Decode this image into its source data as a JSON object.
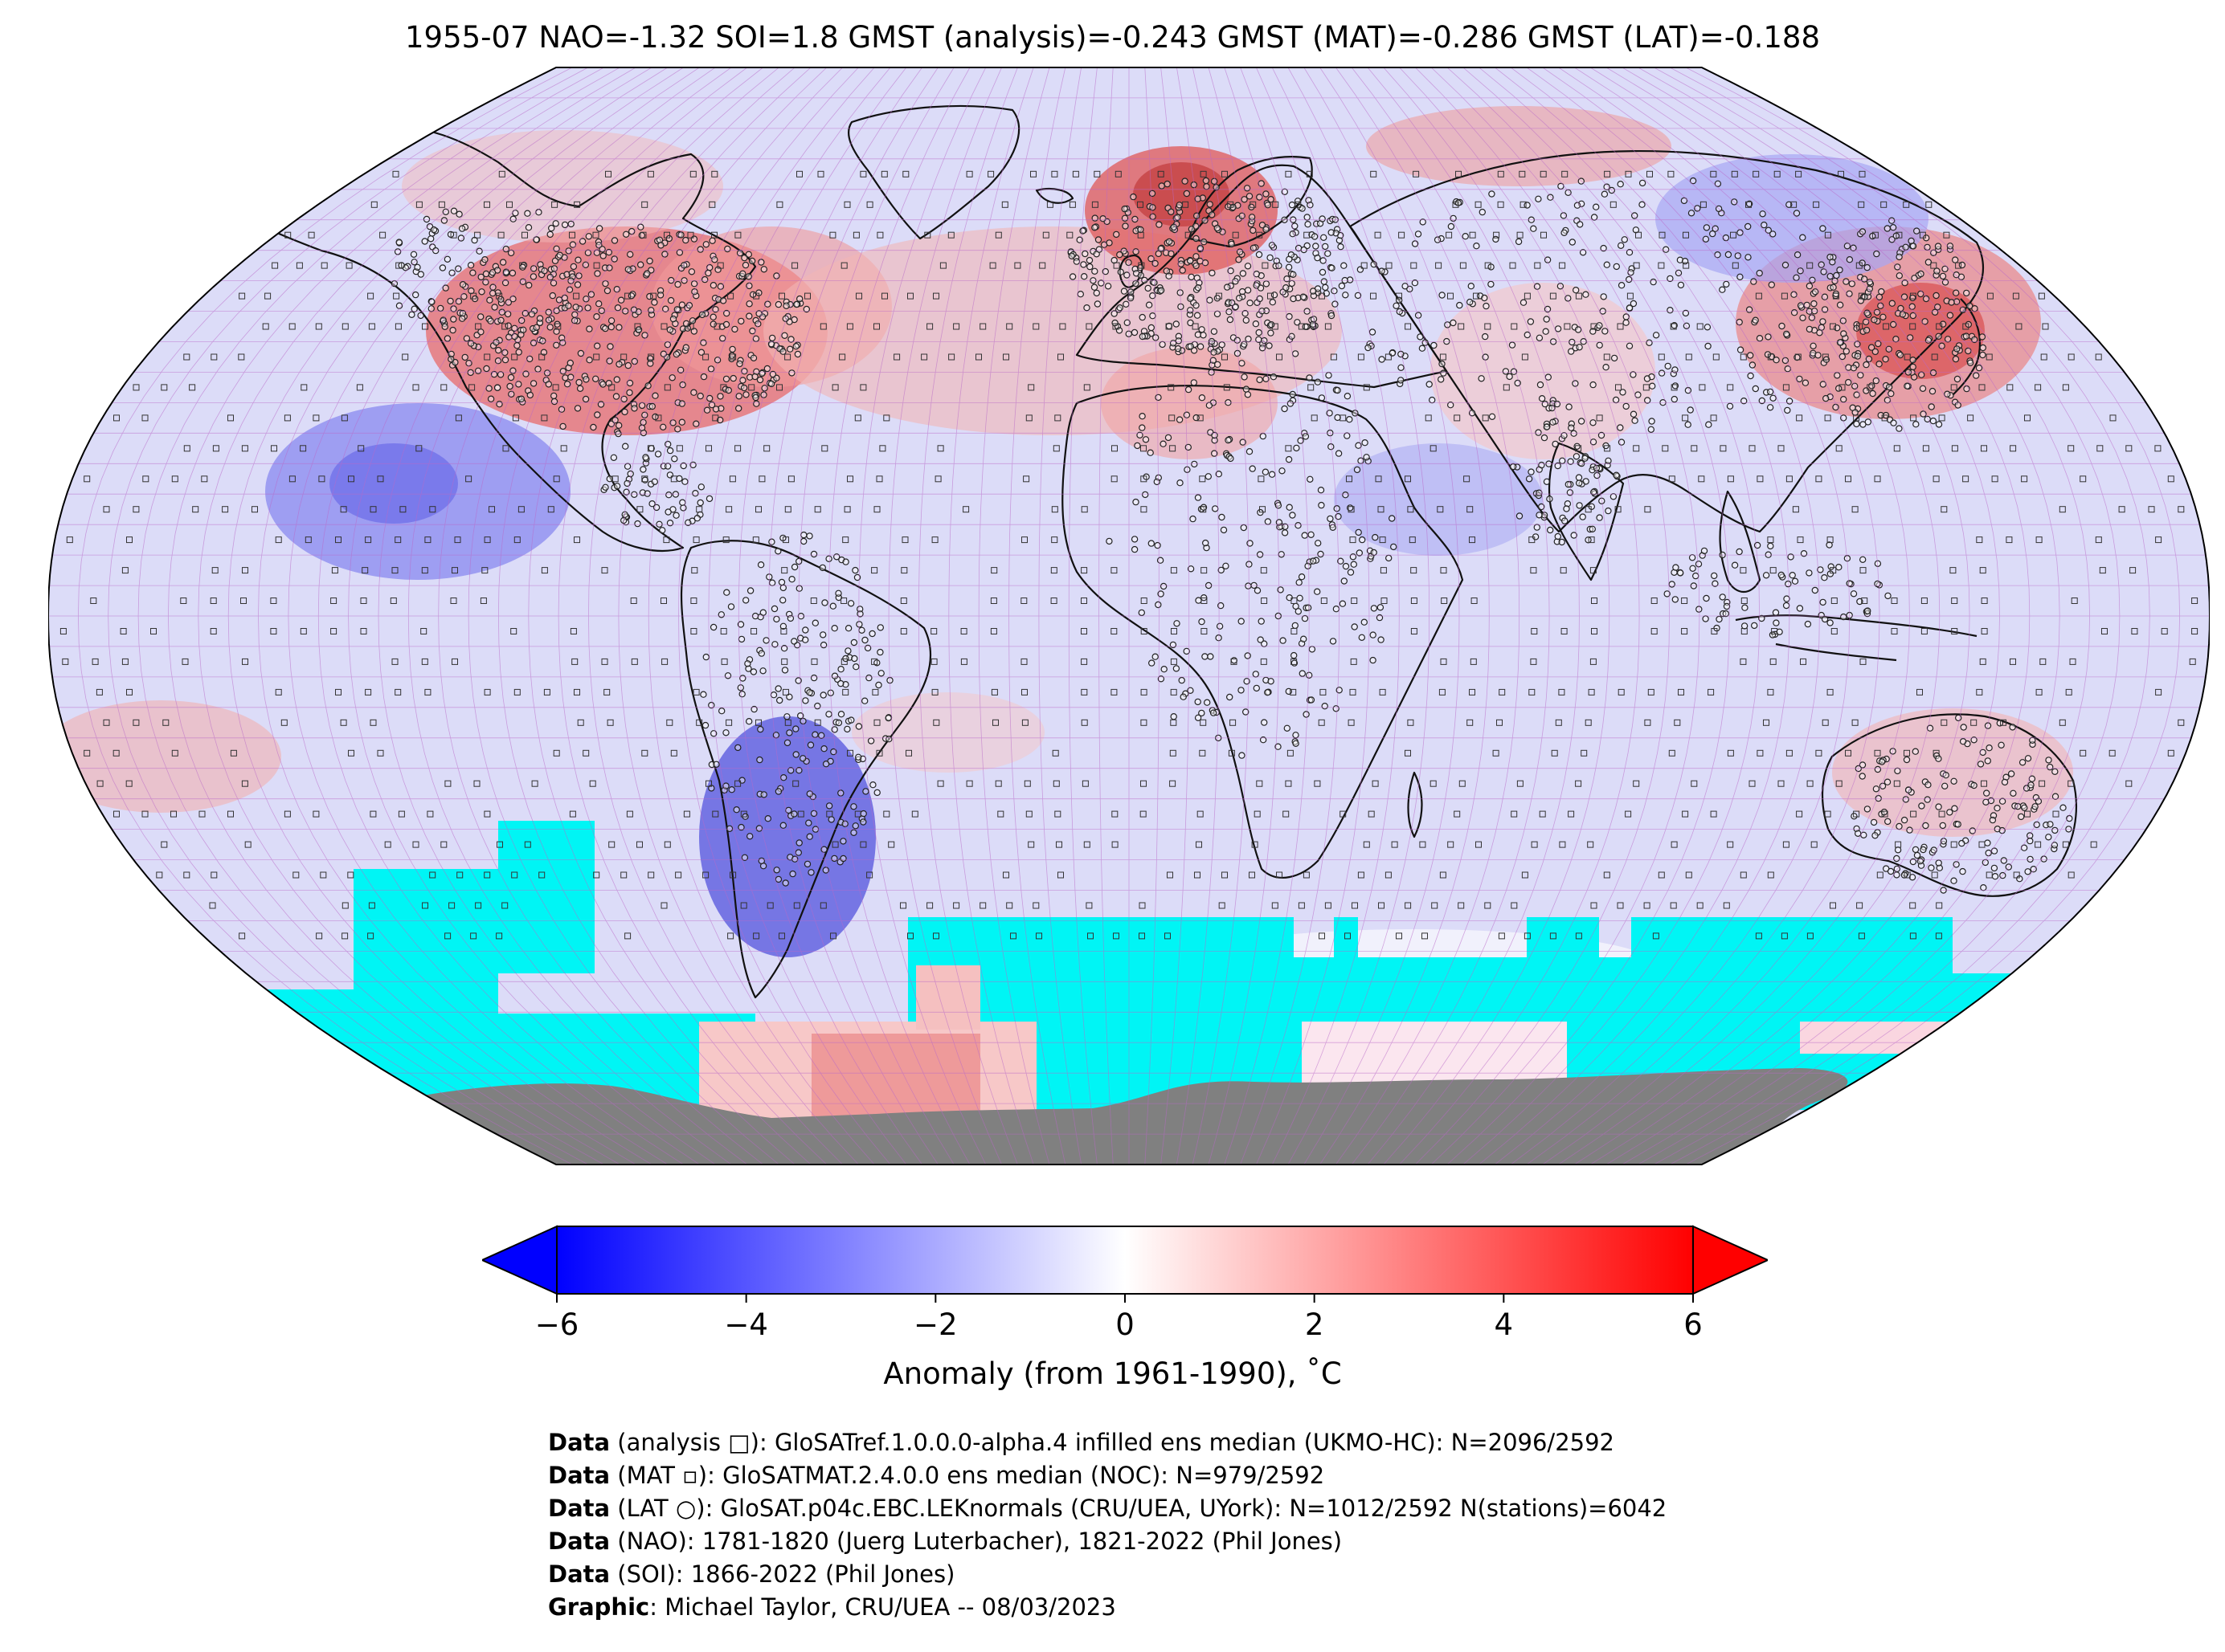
{
  "title": "1955-07 NAO=-1.32 SOI=1.8 GMST (analysis)=-0.243 GMST (MAT)=-0.286 GMST (LAT)=-0.188",
  "map": {
    "projection": "Robinson",
    "ocean_color": "#dcdcf8",
    "no_data_color": "#00f5f5",
    "land_ice_color": "#808080",
    "gridline_color": "#b968c8"
  },
  "colorbar": {
    "ticks": [
      "−6",
      "−4",
      "−2",
      "0",
      "2",
      "4",
      "6"
    ],
    "tick_values": [
      -6,
      -4,
      -2,
      0,
      2,
      4,
      6
    ],
    "vmin": -6,
    "vmax": 6,
    "cmap": [
      "#0000ff",
      "#ffffff",
      "#ff0000"
    ],
    "extend": "both",
    "label": "Anomaly (from 1961-1990), ˚C"
  },
  "credits": [
    {
      "bold": "Data",
      "text": " (analysis □): GloSATref.1.0.0.0-alpha.4 infilled ens median (UKMO-HC): N=2096/2592"
    },
    {
      "bold": "Data",
      "text": " (MAT ▫): GloSATMAT.2.4.0.0 ens median (NOC): N=979/2592"
    },
    {
      "bold": "Data",
      "text": " (LAT ○): GloSAT.p04c.EBC.LEKnormals (CRU/UEA, UYork): N=1012/2592 N(stations)=6042"
    },
    {
      "bold": "Data",
      "text": " (NAO): 1781-1820 (Juerg Luterbacher), 1821-2022 (Phil Jones)"
    },
    {
      "bold": "Data",
      "text": " (SOI): 1866-2022 (Phil Jones)"
    },
    {
      "bold": "Graphic",
      "text": ": Michael Taylor, CRU/UEA -- 08/03/2023"
    }
  ]
}
